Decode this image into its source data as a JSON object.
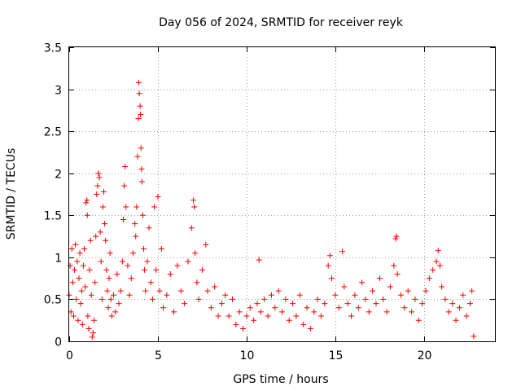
{
  "chart_data": {
    "type": "scatter",
    "title": "Day 056 of 2024, SRMTID for receiver reyk",
    "xlabel": "GPS time / hours",
    "ylabel": "SRMTID / TECUs",
    "xlim": [
      0,
      24
    ],
    "ylim": [
      0,
      3.5
    ],
    "x_ticks": [
      0,
      5,
      10,
      15,
      20
    ],
    "x_tick_labels": [
      "0",
      "5",
      "10",
      "15",
      "20"
    ],
    "y_ticks": [
      0,
      0.5,
      1,
      1.5,
      2,
      2.5,
      3,
      3.5
    ],
    "y_tick_labels": [
      "0",
      "0.5",
      "1",
      "1.5",
      "2",
      "2.5",
      "3",
      "3.5"
    ],
    "grid": true,
    "marker": "+",
    "color": "#ff0000",
    "series": [
      {
        "name": "SRMTID",
        "points": [
          [
            0.0,
            0.55
          ],
          [
            0.05,
            0.9
          ],
          [
            0.1,
            0.35
          ],
          [
            0.15,
            1.1
          ],
          [
            0.2,
            0.7
          ],
          [
            0.25,
            0.3
          ],
          [
            0.3,
            0.85
          ],
          [
            0.35,
            1.15
          ],
          [
            0.4,
            0.5
          ],
          [
            0.45,
            0.95
          ],
          [
            0.5,
            0.25
          ],
          [
            0.55,
            0.75
          ],
          [
            0.6,
            1.05
          ],
          [
            0.65,
            0.45
          ],
          [
            0.7,
            0.6
          ],
          [
            0.75,
            0.2
          ],
          [
            0.8,
            0.9
          ],
          [
            0.85,
            1.1
          ],
          [
            0.9,
            0.65
          ],
          [
            0.95,
            1.65
          ],
          [
            1.0,
            1.68
          ],
          [
            1.02,
            1.5
          ],
          [
            1.05,
            0.3
          ],
          [
            1.1,
            0.15
          ],
          [
            1.15,
            0.85
          ],
          [
            1.2,
            1.2
          ],
          [
            1.25,
            0.55
          ],
          [
            1.3,
            0.05
          ],
          [
            1.35,
            0.1
          ],
          [
            1.4,
            0.25
          ],
          [
            1.45,
            0.7
          ],
          [
            1.5,
            1.25
          ],
          [
            1.55,
            1.75
          ],
          [
            1.6,
            1.85
          ],
          [
            1.65,
            2.0
          ],
          [
            1.7,
            1.95
          ],
          [
            1.75,
            1.3
          ],
          [
            1.8,
            0.95
          ],
          [
            1.85,
            0.5
          ],
          [
            1.9,
            1.6
          ],
          [
            1.95,
            1.78
          ],
          [
            2.0,
            1.4
          ],
          [
            2.05,
            1.2
          ],
          [
            2.1,
            0.85
          ],
          [
            2.15,
            0.6
          ],
          [
            2.2,
            0.4
          ],
          [
            2.25,
            0.75
          ],
          [
            2.3,
            1.05
          ],
          [
            2.35,
            0.5
          ],
          [
            2.4,
            0.3
          ],
          [
            2.5,
            0.55
          ],
          [
            2.6,
            0.35
          ],
          [
            2.7,
            0.8
          ],
          [
            2.8,
            0.45
          ],
          [
            2.9,
            0.6
          ],
          [
            3.0,
            0.95
          ],
          [
            3.05,
            1.45
          ],
          [
            3.1,
            1.85
          ],
          [
            3.15,
            2.08
          ],
          [
            3.2,
            1.6
          ],
          [
            3.3,
            0.9
          ],
          [
            3.4,
            0.55
          ],
          [
            3.5,
            0.75
          ],
          [
            3.6,
            1.05
          ],
          [
            3.7,
            1.4
          ],
          [
            3.75,
            1.25
          ],
          [
            3.8,
            1.6
          ],
          [
            3.85,
            2.2
          ],
          [
            3.9,
            2.65
          ],
          [
            3.92,
            3.08
          ],
          [
            3.95,
            2.95
          ],
          [
            4.0,
            2.8
          ],
          [
            4.02,
            2.7
          ],
          [
            4.05,
            2.3
          ],
          [
            4.08,
            2.05
          ],
          [
            4.1,
            1.9
          ],
          [
            4.15,
            1.5
          ],
          [
            4.2,
            1.1
          ],
          [
            4.25,
            0.85
          ],
          [
            4.3,
            0.6
          ],
          [
            4.4,
            0.95
          ],
          [
            4.5,
            1.35
          ],
          [
            4.6,
            0.7
          ],
          [
            4.7,
            0.5
          ],
          [
            4.8,
            1.6
          ],
          [
            4.9,
            0.85
          ],
          [
            5.0,
            1.72
          ],
          [
            5.1,
            0.6
          ],
          [
            5.2,
            1.1
          ],
          [
            5.3,
            0.4
          ],
          [
            5.5,
            0.55
          ],
          [
            5.7,
            0.8
          ],
          [
            5.9,
            0.35
          ],
          [
            6.1,
            0.9
          ],
          [
            6.3,
            0.6
          ],
          [
            6.5,
            0.45
          ],
          [
            6.7,
            0.95
          ],
          [
            6.9,
            1.35
          ],
          [
            7.0,
            1.68
          ],
          [
            7.05,
            1.6
          ],
          [
            7.1,
            1.05
          ],
          [
            7.2,
            0.7
          ],
          [
            7.3,
            0.5
          ],
          [
            7.5,
            0.85
          ],
          [
            7.7,
            1.15
          ],
          [
            7.8,
            0.6
          ],
          [
            8.0,
            0.4
          ],
          [
            8.2,
            0.65
          ],
          [
            8.4,
            0.3
          ],
          [
            8.6,
            0.45
          ],
          [
            8.8,
            0.55
          ],
          [
            9.0,
            0.3
          ],
          [
            9.2,
            0.5
          ],
          [
            9.4,
            0.2
          ],
          [
            9.6,
            0.35
          ],
          [
            9.8,
            0.15
          ],
          [
            10.0,
            0.3
          ],
          [
            10.2,
            0.4
          ],
          [
            10.4,
            0.25
          ],
          [
            10.6,
            0.45
          ],
          [
            10.7,
            0.97
          ],
          [
            10.8,
            0.35
          ],
          [
            11.0,
            0.5
          ],
          [
            11.2,
            0.3
          ],
          [
            11.4,
            0.55
          ],
          [
            11.6,
            0.4
          ],
          [
            11.8,
            0.6
          ],
          [
            12.0,
            0.35
          ],
          [
            12.2,
            0.5
          ],
          [
            12.4,
            0.25
          ],
          [
            12.6,
            0.45
          ],
          [
            12.8,
            0.3
          ],
          [
            13.0,
            0.55
          ],
          [
            13.2,
            0.2
          ],
          [
            13.4,
            0.4
          ],
          [
            13.6,
            0.15
          ],
          [
            13.8,
            0.35
          ],
          [
            14.0,
            0.5
          ],
          [
            14.2,
            0.3
          ],
          [
            14.4,
            0.45
          ],
          [
            14.6,
            0.9
          ],
          [
            14.7,
            1.02
          ],
          [
            14.8,
            0.75
          ],
          [
            15.0,
            0.55
          ],
          [
            15.2,
            0.4
          ],
          [
            15.4,
            1.07
          ],
          [
            15.5,
            0.65
          ],
          [
            15.7,
            0.45
          ],
          [
            15.9,
            0.3
          ],
          [
            16.1,
            0.55
          ],
          [
            16.3,
            0.4
          ],
          [
            16.5,
            0.7
          ],
          [
            16.7,
            0.5
          ],
          [
            16.9,
            0.35
          ],
          [
            17.1,
            0.6
          ],
          [
            17.3,
            0.45
          ],
          [
            17.5,
            0.75
          ],
          [
            17.7,
            0.5
          ],
          [
            17.9,
            0.35
          ],
          [
            18.1,
            0.65
          ],
          [
            18.3,
            0.9
          ],
          [
            18.4,
            1.22
          ],
          [
            18.45,
            1.25
          ],
          [
            18.5,
            0.8
          ],
          [
            18.7,
            0.55
          ],
          [
            18.9,
            0.4
          ],
          [
            19.1,
            0.6
          ],
          [
            19.3,
            0.35
          ],
          [
            19.5,
            0.5
          ],
          [
            19.7,
            0.25
          ],
          [
            19.9,
            0.45
          ],
          [
            20.1,
            0.6
          ],
          [
            20.3,
            0.75
          ],
          [
            20.5,
            0.85
          ],
          [
            20.7,
            0.95
          ],
          [
            20.8,
            1.08
          ],
          [
            20.9,
            0.9
          ],
          [
            21.0,
            0.65
          ],
          [
            21.2,
            0.5
          ],
          [
            21.4,
            0.35
          ],
          [
            21.6,
            0.45
          ],
          [
            21.8,
            0.25
          ],
          [
            22.0,
            0.4
          ],
          [
            22.2,
            0.55
          ],
          [
            22.4,
            0.3
          ],
          [
            22.6,
            0.45
          ],
          [
            22.7,
            0.6
          ],
          [
            22.8,
            0.06
          ]
        ]
      }
    ]
  }
}
